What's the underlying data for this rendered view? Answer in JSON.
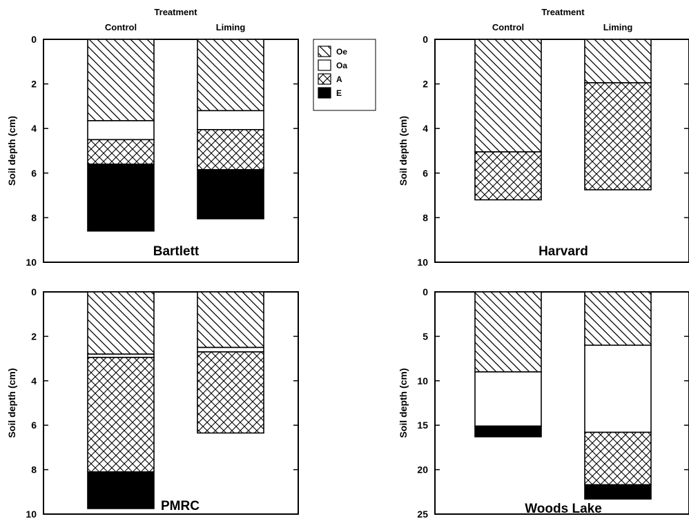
{
  "legend": [
    {
      "name": "Oe",
      "pattern": "hatch-oe"
    },
    {
      "name": "Oa",
      "pattern": "white"
    },
    {
      "name": "A",
      "pattern": "crosshatch"
    },
    {
      "name": "E",
      "pattern": "black"
    }
  ],
  "chart_data": [
    {
      "type": "bar",
      "stacked": true,
      "header": "Treatment",
      "categories": [
        "Control",
        "Liming"
      ],
      "ylabel": "Soil depth (cm)",
      "ylim": [
        0,
        10
      ],
      "yticks": [
        0,
        2,
        4,
        6,
        8,
        10
      ],
      "inverted_y": true,
      "site": "Bartlett",
      "series": [
        {
          "name": "Oe",
          "values": [
            3.65,
            3.2
          ]
        },
        {
          "name": "Oa",
          "values": [
            0.85,
            0.85
          ]
        },
        {
          "name": "A",
          "values": [
            1.1,
            1.8
          ]
        },
        {
          "name": "E",
          "values": [
            3.0,
            2.2
          ]
        }
      ]
    },
    {
      "type": "bar",
      "stacked": true,
      "header": "Treatment",
      "categories": [
        "Control",
        "Liming"
      ],
      "ylabel": "Soil depth (cm)",
      "ylim": [
        0,
        10
      ],
      "yticks": [
        0,
        2,
        4,
        6,
        8,
        10
      ],
      "inverted_y": true,
      "site": "Harvard",
      "series": [
        {
          "name": "Oe",
          "values": [
            5.05,
            1.95
          ]
        },
        {
          "name": "Oa",
          "values": [
            0,
            0
          ]
        },
        {
          "name": "A",
          "values": [
            2.15,
            4.8
          ]
        },
        {
          "name": "E",
          "values": [
            0,
            0
          ]
        }
      ]
    },
    {
      "type": "bar",
      "stacked": true,
      "categories": [
        "Control",
        "Liming"
      ],
      "ylabel": "Soil depth (cm)",
      "ylim": [
        0,
        10
      ],
      "yticks": [
        0,
        2,
        4,
        6,
        8,
        10
      ],
      "inverted_y": true,
      "site": "PMRC",
      "series": [
        {
          "name": "Oe",
          "values": [
            2.8,
            2.5
          ]
        },
        {
          "name": "Oa",
          "values": [
            0.15,
            0.2
          ]
        },
        {
          "name": "A",
          "values": [
            5.15,
            3.65
          ]
        },
        {
          "name": "E",
          "values": [
            1.65,
            0
          ]
        }
      ]
    },
    {
      "type": "bar",
      "stacked": true,
      "categories": [
        "Control",
        "Liming"
      ],
      "ylabel": "Soil depth (cm)",
      "ylim": [
        0,
        25
      ],
      "yticks": [
        0,
        5,
        10,
        15,
        20,
        25
      ],
      "inverted_y": true,
      "site": "Woods Lake",
      "series": [
        {
          "name": "Oe",
          "values": [
            9.0,
            6.0
          ]
        },
        {
          "name": "Oa",
          "values": [
            6.1,
            9.8
          ]
        },
        {
          "name": "A",
          "values": [
            0,
            5.9
          ]
        },
        {
          "name": "E",
          "values": [
            1.2,
            1.6
          ]
        }
      ]
    }
  ]
}
